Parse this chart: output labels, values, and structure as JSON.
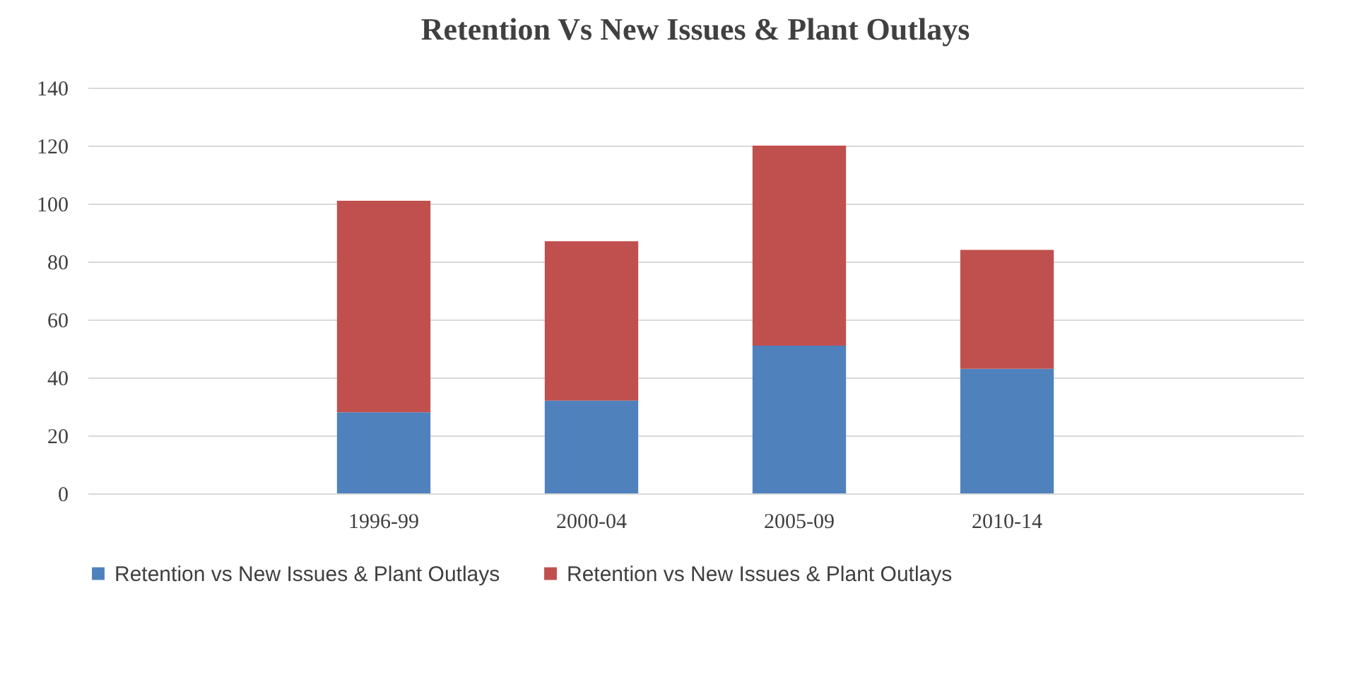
{
  "chart_data": {
    "type": "bar",
    "title": "Retention Vs New Issues & Plant Outlays",
    "categories": [
      null,
      "1996-99",
      "2000-04",
      "2005-09",
      "2010-14",
      null
    ],
    "stacked": true,
    "series": [
      {
        "name": "Retention vs New Issues & Plant Outlays",
        "color": "#4f81bd",
        "values": [
          null,
          28,
          32,
          51,
          43,
          null
        ]
      },
      {
        "name": "Retention vs New Issues & Plant Outlays",
        "color": "#c0504d",
        "values": [
          null,
          73,
          55,
          69,
          41,
          null
        ]
      }
    ],
    "ylim": [
      0,
      140
    ],
    "yticks": [
      0,
      20,
      40,
      60,
      80,
      100,
      120,
      140
    ],
    "grid": "y",
    "legend": "bottom"
  }
}
